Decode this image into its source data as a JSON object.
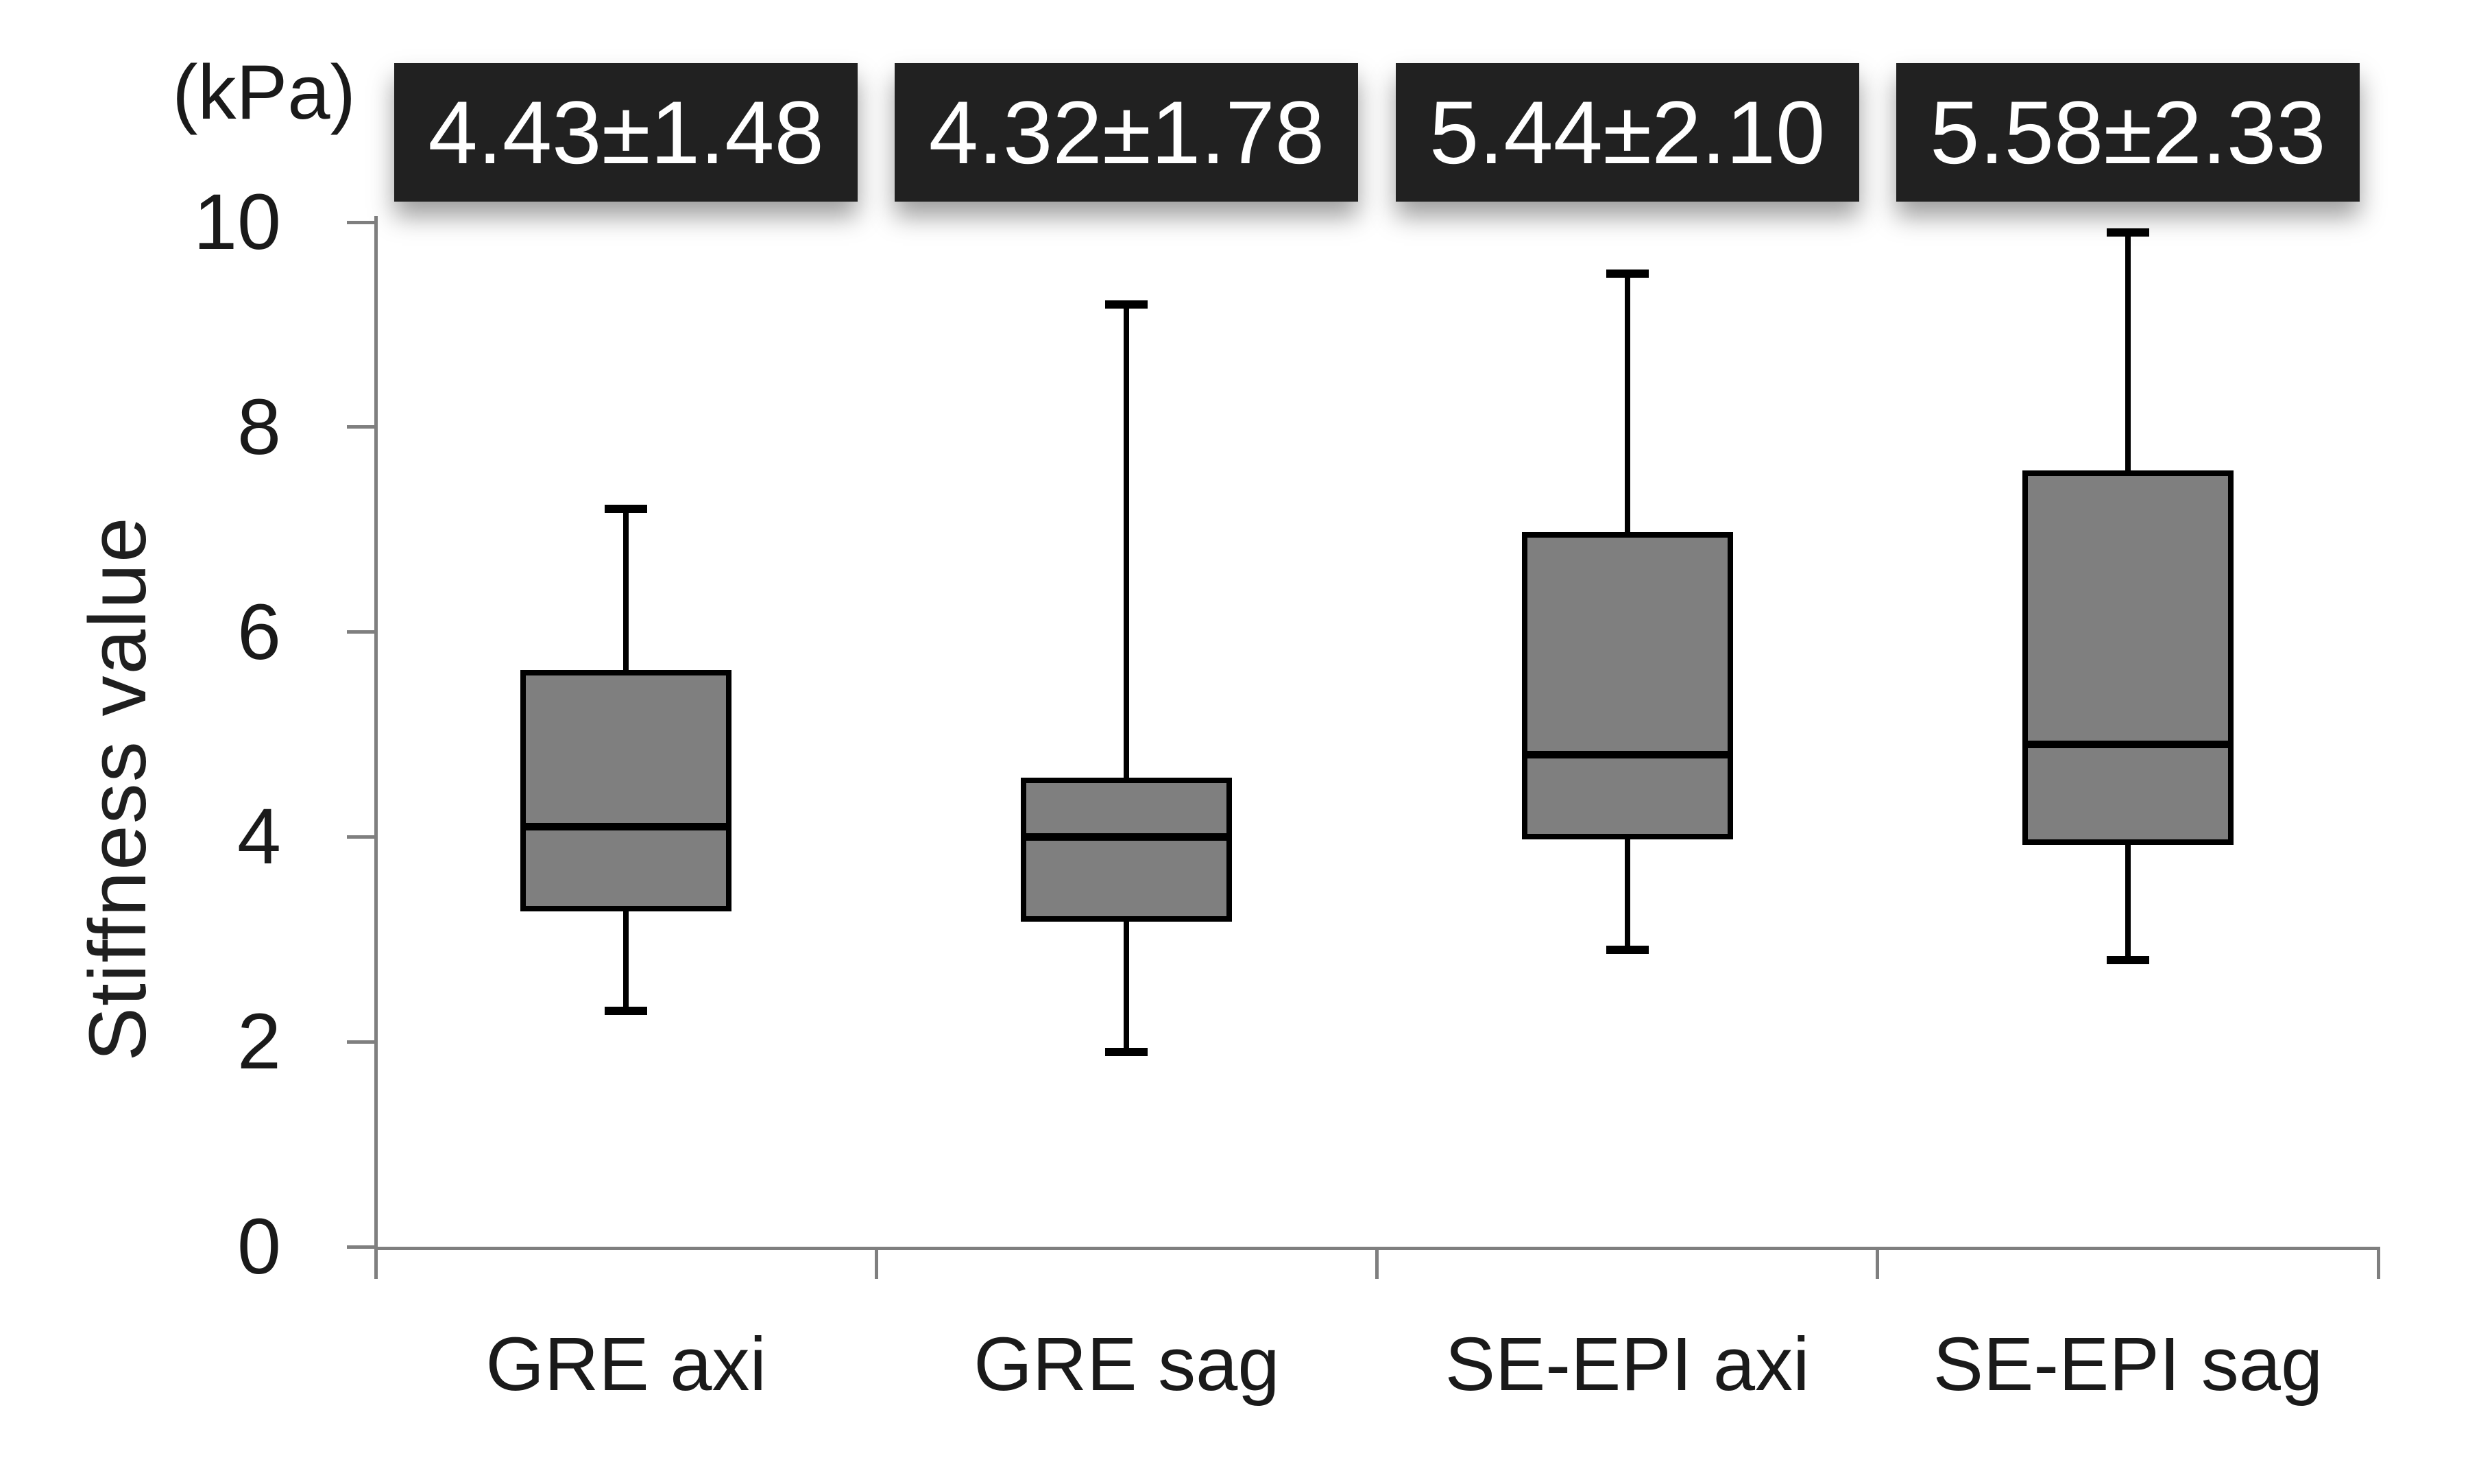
{
  "figure": {
    "unit_label": "(kPa)",
    "y_axis_title": "Stiffness value"
  },
  "chart_data": {
    "type": "box",
    "title": "",
    "xlabel": "",
    "ylabel": "Stiffness value",
    "unit_label": "(kPa)",
    "ylim": [
      0,
      10
    ],
    "yticks": [
      0,
      2,
      4,
      6,
      8,
      10
    ],
    "grid": "off",
    "legend": "none",
    "categories": [
      "GRE axi",
      "GRE sag",
      "SE-EPI axi",
      "SE-EPI sag"
    ],
    "series": [
      {
        "category": "GRE axi",
        "mean_sd_label": "4.43±1.48",
        "mean": 4.43,
        "sd": 1.48,
        "min": 2.3,
        "q1": 3.3,
        "median": 4.1,
        "q3": 5.6,
        "max": 7.2
      },
      {
        "category": "GRE sag",
        "mean_sd_label": "4.32±1.78",
        "mean": 4.32,
        "sd": 1.78,
        "min": 1.9,
        "q1": 3.2,
        "median": 4.0,
        "q3": 4.55,
        "max": 9.2
      },
      {
        "category": "SE-EPI axi",
        "mean_sd_label": "5.44±2.10",
        "mean": 5.44,
        "sd": 2.1,
        "min": 2.9,
        "q1": 4.0,
        "median": 4.8,
        "q3": 6.95,
        "max": 9.5
      },
      {
        "category": "SE-EPI sag",
        "mean_sd_label": "5.58±2.33",
        "mean": 5.58,
        "sd": 2.33,
        "min": 2.8,
        "q1": 3.95,
        "median": 4.9,
        "q3": 7.55,
        "max": 9.9
      }
    ],
    "colors": {
      "box_fill": "#7f7f7f",
      "box_border": "#000000",
      "whisker": "#000000",
      "axis": "#7f7f7f",
      "text": "#1a1a1a",
      "annotation_bg": "#212121",
      "annotation_text": "#ffffff",
      "background": "#ffffff"
    }
  }
}
